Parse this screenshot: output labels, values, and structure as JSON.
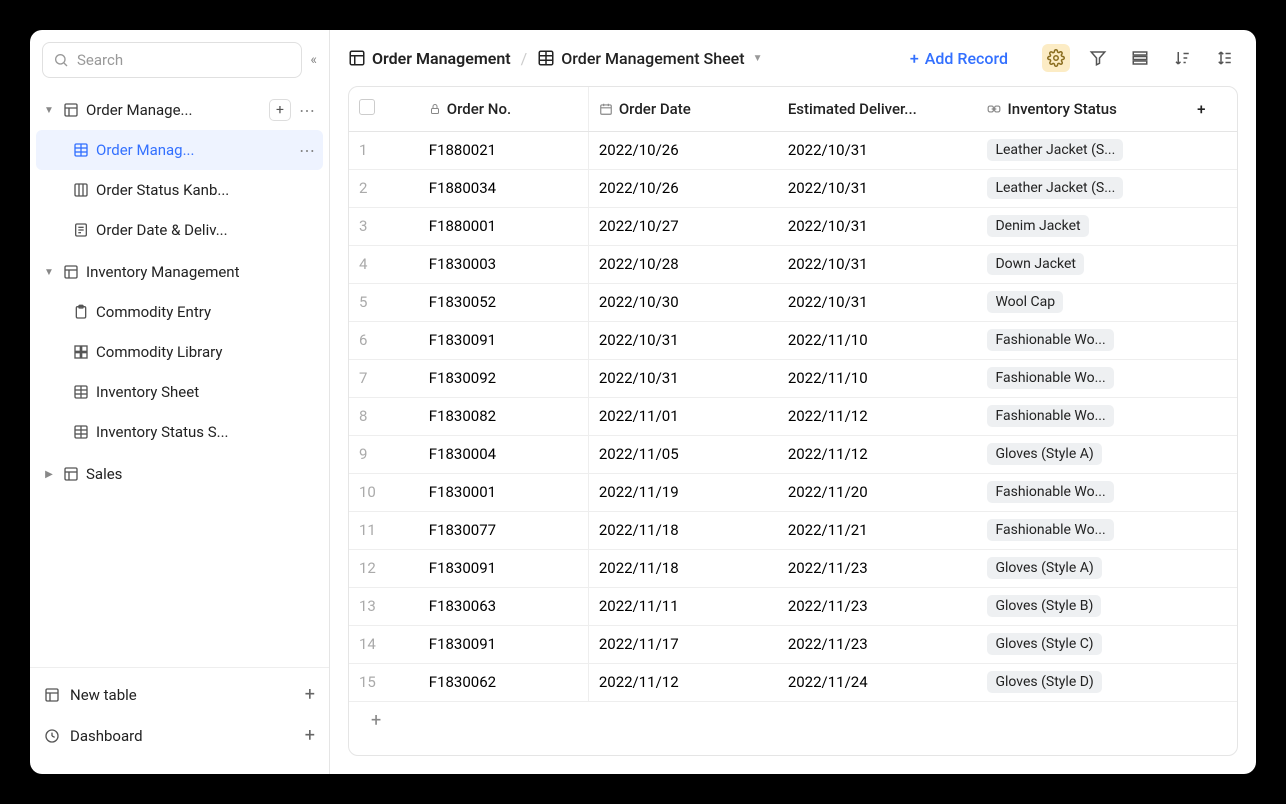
{
  "colors": {
    "accent": "#3370ff",
    "settings_bg": "#fcecc5",
    "tag_bg": "#eef0f2",
    "border": "#e5e5e5"
  },
  "sidebar": {
    "search_placeholder": "Search",
    "groups": [
      {
        "label": "Order Manage...",
        "expanded": true,
        "has_add": true,
        "children": [
          {
            "label": "Order Manag...",
            "icon": "grid",
            "active": true,
            "has_dots": true
          },
          {
            "label": "Order Status Kanb...",
            "icon": "kanban"
          },
          {
            "label": "Order Date & Deliv...",
            "icon": "form"
          }
        ]
      },
      {
        "label": "Inventory Management",
        "expanded": true,
        "children": [
          {
            "label": "Commodity Entry",
            "icon": "clipboard"
          },
          {
            "label": "Commodity Library",
            "icon": "grid4"
          },
          {
            "label": "Inventory Sheet",
            "icon": "grid"
          },
          {
            "label": "Inventory Status S...",
            "icon": "grid"
          }
        ]
      },
      {
        "label": "Sales",
        "expanded": false
      }
    ],
    "footer": {
      "new_table": "New table",
      "dashboard": "Dashboard"
    }
  },
  "header": {
    "breadcrumb_table": "Order Management",
    "breadcrumb_sheet": "Order Management Sheet",
    "add_record": "Add Record"
  },
  "table": {
    "columns": {
      "order_no": "Order No.",
      "order_date": "Order Date",
      "estimated_delivery": "Estimated Deliver...",
      "inventory_status": "Inventory Status"
    },
    "rows": [
      {
        "idx": 1,
        "order_no": "F1880021",
        "order_date": "2022/10/26",
        "delivery": "2022/10/31",
        "inventory": "Leather Jacket (S..."
      },
      {
        "idx": 2,
        "order_no": "F1880034",
        "order_date": "2022/10/26",
        "delivery": "2022/10/31",
        "inventory": "Leather Jacket (S..."
      },
      {
        "idx": 3,
        "order_no": "F1880001",
        "order_date": "2022/10/27",
        "delivery": "2022/10/31",
        "inventory": "Denim Jacket"
      },
      {
        "idx": 4,
        "order_no": "F1830003",
        "order_date": "2022/10/28",
        "delivery": "2022/10/31",
        "inventory": "Down Jacket"
      },
      {
        "idx": 5,
        "order_no": "F1830052",
        "order_date": "2022/10/30",
        "delivery": "2022/10/31",
        "inventory": "Wool Cap"
      },
      {
        "idx": 6,
        "order_no": "F1830091",
        "order_date": "2022/10/31",
        "delivery": "2022/11/10",
        "inventory": "Fashionable Wo..."
      },
      {
        "idx": 7,
        "order_no": "F1830092",
        "order_date": "2022/10/31",
        "delivery": "2022/11/10",
        "inventory": "Fashionable Wo..."
      },
      {
        "idx": 8,
        "order_no": "F1830082",
        "order_date": "2022/11/01",
        "delivery": "2022/11/12",
        "inventory": "Fashionable Wo..."
      },
      {
        "idx": 9,
        "order_no": "F1830004",
        "order_date": "2022/11/05",
        "delivery": "2022/11/12",
        "inventory": "Gloves (Style A)"
      },
      {
        "idx": 10,
        "order_no": "F1830001",
        "order_date": "2022/11/19",
        "delivery": "2022/11/20",
        "inventory": "Fashionable Wo..."
      },
      {
        "idx": 11,
        "order_no": "F1830077",
        "order_date": "2022/11/18",
        "delivery": "2022/11/21",
        "inventory": "Fashionable Wo..."
      },
      {
        "idx": 12,
        "order_no": "F1830091",
        "order_date": "2022/11/18",
        "delivery": "2022/11/23",
        "inventory": "Gloves (Style A)"
      },
      {
        "idx": 13,
        "order_no": "F1830063",
        "order_date": "2022/11/11",
        "delivery": "2022/11/23",
        "inventory": "Gloves (Style B)"
      },
      {
        "idx": 14,
        "order_no": "F1830091",
        "order_date": "2022/11/17",
        "delivery": "2022/11/23",
        "inventory": "Gloves (Style C)"
      },
      {
        "idx": 15,
        "order_no": "F1830062",
        "order_date": "2022/11/12",
        "delivery": "2022/11/24",
        "inventory": "Gloves (Style D)"
      }
    ]
  }
}
